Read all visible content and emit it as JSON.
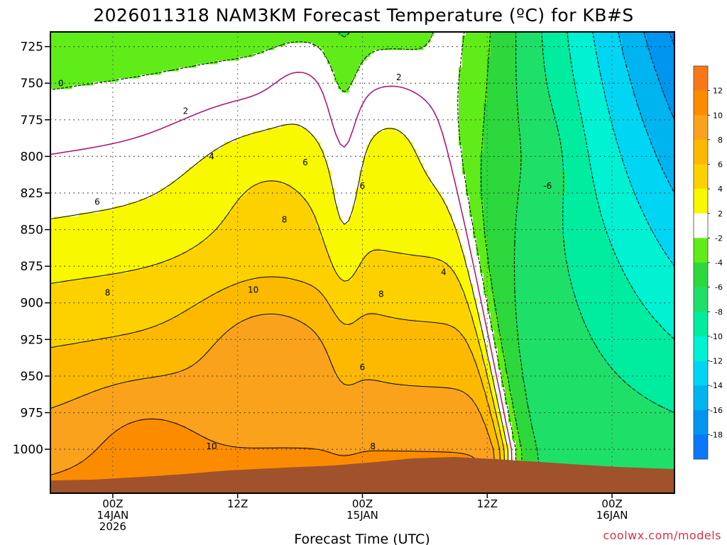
{
  "chart_data": {
    "type": "heatmap",
    "title": "2026011318 NAM3KM Forecast Temperature (ºC) for KB#S",
    "xlabel": "Forecast Time (UTC)",
    "ylabel": "",
    "y_axis": {
      "ticks": [
        "725",
        "750",
        "775",
        "800",
        "825",
        "850",
        "875",
        "900",
        "925",
        "950",
        "975",
        "1000"
      ],
      "range": [
        1030,
        715
      ],
      "unit": "hPa"
    },
    "x_axis": {
      "ticks": [
        {
          "hour": 6,
          "lines": [
            "00Z",
            "14JAN",
            "2026"
          ]
        },
        {
          "hour": 18,
          "lines": [
            "12Z",
            "",
            ""
          ]
        },
        {
          "hour": 30,
          "lines": [
            "00Z",
            "15JAN",
            ""
          ]
        },
        {
          "hour": 42,
          "lines": [
            "12Z",
            "",
            ""
          ]
        },
        {
          "hour": 54,
          "lines": [
            "00Z",
            "16JAN",
            ""
          ]
        }
      ],
      "range_forecast_hours": [
        0,
        60
      ]
    },
    "grid": true,
    "colorbar": {
      "labels": [
        "12",
        "10",
        "8",
        "6",
        "4",
        "2",
        "-2",
        "-4",
        "-6",
        "-8",
        "-10",
        "-12",
        "-14",
        "-16",
        "-18"
      ],
      "bands": [
        {
          "lo": 12,
          "hi": 14,
          "color": "#f87818"
        },
        {
          "lo": 10,
          "hi": 12,
          "color": "#fb8c00"
        },
        {
          "lo": 8,
          "hi": 10,
          "color": "#fba21c"
        },
        {
          "lo": 6,
          "hi": 8,
          "color": "#fcb900"
        },
        {
          "lo": 4,
          "hi": 6,
          "color": "#fdd100"
        },
        {
          "lo": 2,
          "hi": 4,
          "color": "#f8f800"
        },
        {
          "lo": -2,
          "hi": 2,
          "color": "#ffffff"
        },
        {
          "lo": -4,
          "hi": -2,
          "color": "#60ec18"
        },
        {
          "lo": -6,
          "hi": -4,
          "color": "#2cd83c"
        },
        {
          "lo": -8,
          "hi": -6,
          "color": "#1ee068"
        },
        {
          "lo": -10,
          "hi": -8,
          "color": "#00ec9e"
        },
        {
          "lo": -12,
          "hi": -10,
          "color": "#00f2d2"
        },
        {
          "lo": -14,
          "hi": -12,
          "color": "#00d6f4"
        },
        {
          "lo": -16,
          "hi": -14,
          "color": "#00b4f0"
        },
        {
          "lo": -18,
          "hi": -16,
          "color": "#0096f0"
        },
        {
          "lo": -20,
          "hi": -18,
          "color": "#0a78f8"
        }
      ]
    },
    "contour_labels": [
      {
        "label": "0",
        "hour": 1.0,
        "p": 752
      },
      {
        "label": "2",
        "hour": 13.0,
        "p": 771
      },
      {
        "label": "4",
        "hour": 15.5,
        "p": 802
      },
      {
        "label": "6",
        "hour": 24.5,
        "p": 806
      },
      {
        "label": "6",
        "hour": 4.5,
        "p": 833
      },
      {
        "label": "8",
        "hour": 22.5,
        "p": 845
      },
      {
        "label": "8",
        "hour": 5.5,
        "p": 895
      },
      {
        "label": "10",
        "hour": 19.5,
        "p": 893
      },
      {
        "label": "2",
        "hour": 33.5,
        "p": 748
      },
      {
        "label": "6",
        "hour": 30.0,
        "p": 822
      },
      {
        "label": "8",
        "hour": 31.8,
        "p": 896
      },
      {
        "label": "6",
        "hour": 30.0,
        "p": 946
      },
      {
        "label": "4",
        "hour": 37.8,
        "p": 881
      },
      {
        "label": "8",
        "hour": 31.0,
        "p": 1000
      },
      {
        "label": "10",
        "hour": 15.5,
        "p": 1000
      },
      {
        "label": "-6",
        "hour": 47.8,
        "p": 822
      }
    ],
    "terrain": {
      "label": "",
      "color": "#a0522d"
    },
    "watermark": "coolwx.com/models"
  }
}
